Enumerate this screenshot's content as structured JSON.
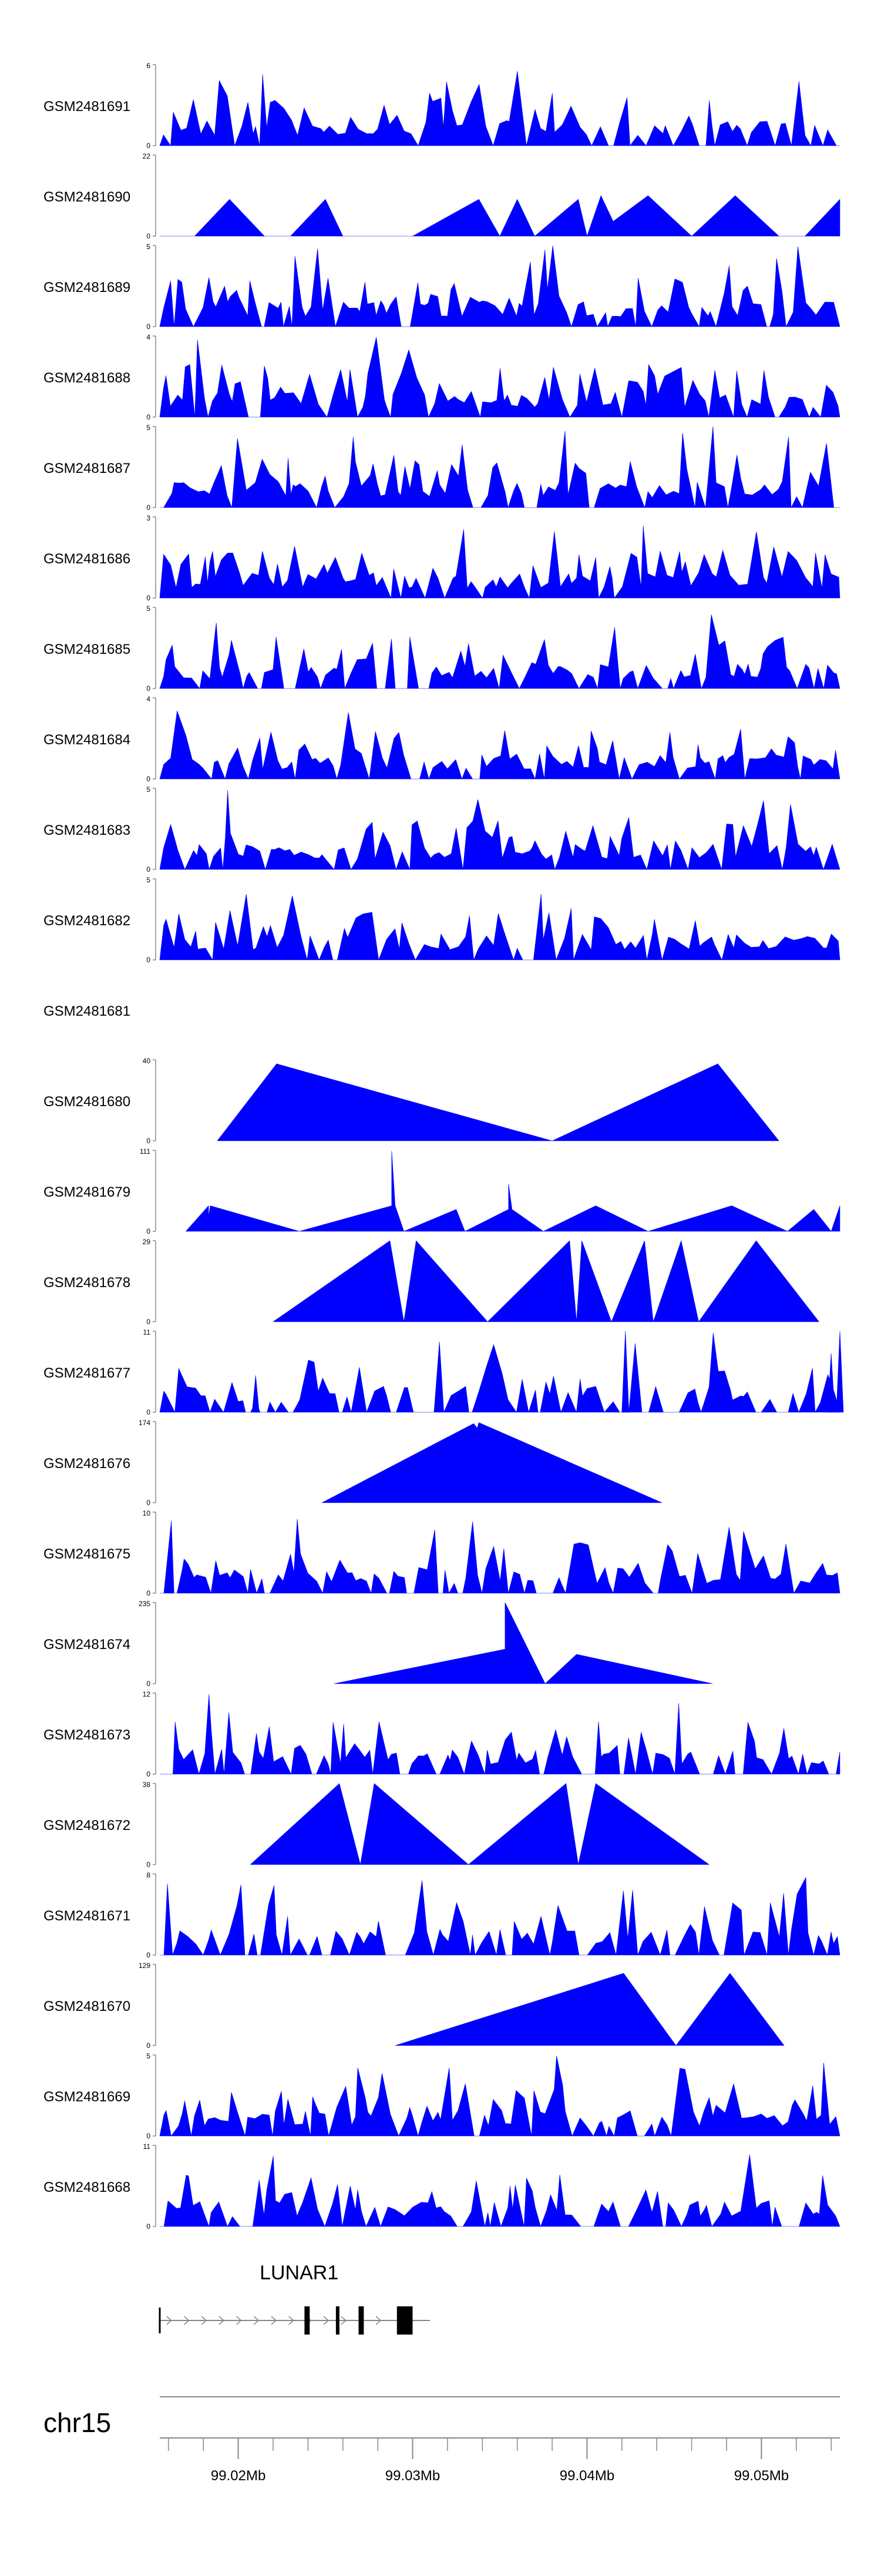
{
  "chart_data": {
    "type": "area",
    "title": "",
    "chromosome": "chr15",
    "color": "#0000ff",
    "xlim": [
      99.0155,
      99.0545
    ],
    "x_axis": {
      "ticks": [
        99.02,
        99.03,
        99.04,
        99.05
      ],
      "tick_labels": [
        "99.02Mb",
        "99.03Mb",
        "99.04Mb",
        "99.05Mb"
      ]
    },
    "gene": {
      "name": "LUNAR1",
      "start": 99.0155,
      "end": 99.031,
      "strand": "+",
      "exons": [
        [
          99.0238,
          99.0241
        ],
        [
          99.0256,
          99.0258
        ],
        [
          99.0269,
          99.0272
        ],
        [
          99.0291,
          99.03
        ]
      ]
    },
    "tracks": [
      {
        "name": "GSM2481691",
        "ymax": 6,
        "density": 0.78,
        "empty": false,
        "seed": 11
      },
      {
        "name": "GSM2481690",
        "ymax": 22,
        "density": 0.0,
        "points": [
          [
            99.0155,
            0
          ],
          [
            99.0175,
            0
          ],
          [
            99.0195,
            10
          ],
          [
            99.0215,
            0
          ],
          [
            99.023,
            0
          ],
          [
            99.025,
            10
          ],
          [
            99.026,
            0
          ],
          [
            99.03,
            0
          ],
          [
            99.0338,
            10
          ],
          [
            99.035,
            0
          ],
          [
            99.036,
            10
          ],
          [
            99.037,
            0
          ],
          [
            99.0395,
            10
          ],
          [
            99.04,
            0
          ],
          [
            99.0408,
            11
          ],
          [
            99.0415,
            4
          ],
          [
            99.0435,
            11
          ],
          [
            99.046,
            0
          ],
          [
            99.0485,
            11
          ],
          [
            99.051,
            0
          ],
          [
            99.0525,
            0
          ],
          [
            99.0545,
            10
          ]
        ]
      },
      {
        "name": "GSM2481689",
        "ymax": 5,
        "density": 0.85,
        "empty": false,
        "seed": 23
      },
      {
        "name": "GSM2481688",
        "ymax": 4,
        "density": 0.88,
        "empty": false,
        "seed": 37
      },
      {
        "name": "GSM2481687",
        "ymax": 5,
        "density": 0.82,
        "empty": false,
        "seed": 41
      },
      {
        "name": "GSM2481686",
        "ymax": 3,
        "density": 0.92,
        "empty": false,
        "seed": 53
      },
      {
        "name": "GSM2481685",
        "ymax": 5,
        "density": 0.8,
        "empty": false,
        "seed": 67
      },
      {
        "name": "GSM2481684",
        "ymax": 4,
        "density": 0.82,
        "empty": false,
        "seed": 71
      },
      {
        "name": "GSM2481683",
        "ymax": 5,
        "density": 0.86,
        "empty": false,
        "seed": 83
      },
      {
        "name": "GSM2481682",
        "ymax": 5,
        "density": 0.84,
        "empty": false,
        "seed": 97
      },
      {
        "name": "GSM2481681",
        "ymax": null,
        "density": 0,
        "empty": true
      },
      {
        "name": "GSM2481680",
        "ymax": 40,
        "points": [
          [
            99.0188,
            0
          ],
          [
            99.0222,
            38
          ],
          [
            99.038,
            0
          ],
          [
            99.0475,
            38
          ],
          [
            99.051,
            0
          ]
        ]
      },
      {
        "name": "GSM2481679",
        "ymax": 111,
        "points": [
          [
            99.017,
            0
          ],
          [
            99.0183,
            35
          ],
          [
            99.0183,
            20
          ],
          [
            99.0184,
            35
          ],
          [
            99.0235,
            0
          ],
          [
            99.0288,
            35
          ],
          [
            99.0288,
            110
          ],
          [
            99.029,
            35
          ],
          [
            99.0295,
            0
          ],
          [
            99.0325,
            30
          ],
          [
            99.033,
            0
          ],
          [
            99.0355,
            30
          ],
          [
            99.0355,
            65
          ],
          [
            99.0357,
            30
          ],
          [
            99.0375,
            0
          ],
          [
            99.0405,
            35
          ],
          [
            99.0435,
            0
          ],
          [
            99.0483,
            35
          ],
          [
            99.0515,
            0
          ],
          [
            99.053,
            30
          ],
          [
            99.054,
            0
          ],
          [
            99.0545,
            35
          ]
        ]
      },
      {
        "name": "GSM2481678",
        "ymax": 29,
        "points": [
          [
            99.022,
            0
          ],
          [
            99.0287,
            29
          ],
          [
            99.0295,
            0
          ],
          [
            99.0302,
            29
          ],
          [
            99.0343,
            0
          ],
          [
            99.039,
            29
          ],
          [
            99.0394,
            0
          ],
          [
            99.0397,
            29
          ],
          [
            99.0414,
            0
          ],
          [
            99.0433,
            29
          ],
          [
            99.0438,
            0
          ],
          [
            99.0454,
            29
          ],
          [
            99.0464,
            0
          ],
          [
            99.0497,
            29
          ],
          [
            99.0533,
            0
          ]
        ]
      },
      {
        "name": "GSM2481677",
        "ymax": 11,
        "density": 0.55,
        "empty": false,
        "seed": 109,
        "overlay": [
          [
            99.021,
            5
          ],
          [
            99.0422,
            11
          ],
          [
            99.054,
            8
          ],
          [
            99.0545,
            11
          ]
        ]
      },
      {
        "name": "GSM2481676",
        "ymax": 174,
        "points": [
          [
            99.0248,
            0
          ],
          [
            99.0335,
            170
          ],
          [
            99.0337,
            160
          ],
          [
            99.0338,
            172
          ],
          [
            99.0443,
            0
          ]
        ]
      },
      {
        "name": "GSM2481675",
        "ymax": 10,
        "density": 0.75,
        "empty": false,
        "seed": 127
      },
      {
        "name": "GSM2481674",
        "ymax": 235,
        "points": [
          [
            99.0255,
            0
          ],
          [
            99.0353,
            100
          ],
          [
            99.0353,
            235
          ],
          [
            99.0376,
            0
          ],
          [
            99.0394,
            85
          ],
          [
            99.0472,
            0
          ]
        ]
      },
      {
        "name": "GSM2481673",
        "ymax": 12,
        "density": 0.7,
        "empty": false,
        "seed": 139
      },
      {
        "name": "GSM2481672",
        "ymax": 38,
        "points": [
          [
            99.0207,
            0
          ],
          [
            99.0258,
            38
          ],
          [
            99.027,
            0
          ],
          [
            99.0278,
            38
          ],
          [
            99.0332,
            0
          ],
          [
            99.0388,
            38
          ],
          [
            99.0395,
            0
          ],
          [
            99.0405,
            38
          ],
          [
            99.047,
            0
          ]
        ]
      },
      {
        "name": "GSM2481671",
        "ymax": 8,
        "density": 0.72,
        "empty": false,
        "seed": 151
      },
      {
        "name": "GSM2481670",
        "ymax": 129,
        "points": [
          [
            99.029,
            0
          ],
          [
            99.0421,
            115
          ],
          [
            99.0451,
            0
          ],
          [
            99.0482,
            115
          ],
          [
            99.0513,
            0
          ]
        ]
      },
      {
        "name": "GSM2481669",
        "ymax": 5,
        "density": 0.88,
        "empty": false,
        "seed": 163
      },
      {
        "name": "GSM2481668",
        "ymax": 11,
        "density": 0.72,
        "empty": false,
        "seed": 173
      }
    ]
  }
}
